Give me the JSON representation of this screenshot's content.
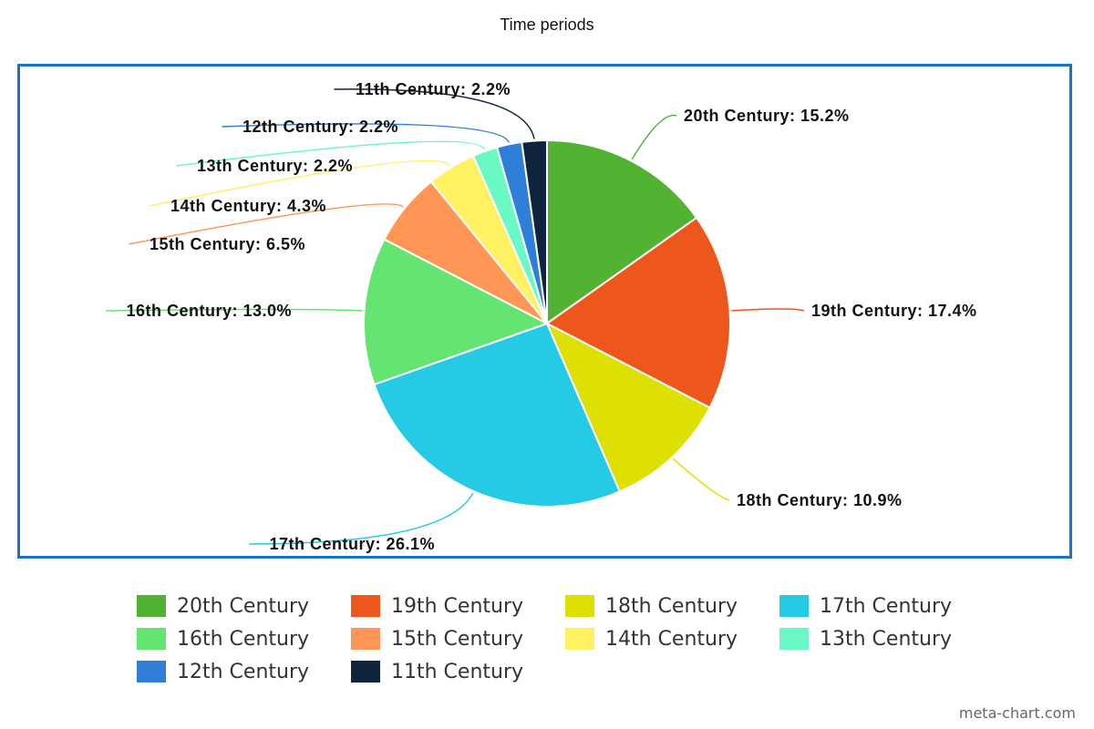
{
  "chart_data": {
    "type": "pie",
    "title": "Time periods",
    "categories": [
      "20th Century",
      "19th Century",
      "18th Century",
      "17th Century",
      "16th Century",
      "15th Century",
      "14th Century",
      "13th Century",
      "12th Century",
      "11th Century"
    ],
    "values": [
      15.2,
      17.4,
      10.9,
      26.1,
      13.0,
      6.5,
      4.3,
      2.2,
      2.2,
      2.2
    ],
    "labels": [
      "20th Century: 15.2%",
      "19th Century: 17.4%",
      "18th Century: 10.9%",
      "17th Century: 26.1%",
      "16th Century: 13.0%",
      "15th Century: 6.5%",
      "14th Century: 4.3%",
      "13th Century: 2.2%",
      "12th Century: 2.2%",
      "11th Century: 2.2%"
    ],
    "colors": [
      "#52b332",
      "#ee571c",
      "#dde000",
      "#25cae5",
      "#64e571",
      "#ff9655",
      "#fff162",
      "#6af9c4",
      "#2f7fd8",
      "#10243d"
    ],
    "legend_position": "bottom"
  },
  "credit": "meta-chart.com"
}
